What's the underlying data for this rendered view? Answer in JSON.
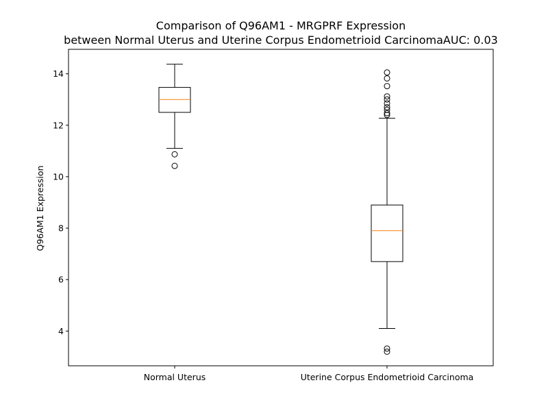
{
  "chart_data": {
    "type": "box",
    "title_line1": "Comparison of Q96AM1 - MRGPRF Expression",
    "title_line2": "between Normal Uterus and Uterine Corpus Endometrioid CarcinomaAUC: 0.03",
    "xlabel": "",
    "ylabel": "Q96AM1 Expression",
    "ylim": [
      2.65,
      14.95
    ],
    "yticks": [
      4,
      6,
      8,
      10,
      12,
      14
    ],
    "grid": false,
    "categories": [
      "Normal Uterus",
      "Uterine Corpus Endometrioid Carcinoma"
    ],
    "boxes": [
      {
        "category": "Normal Uterus",
        "whisker_low": 11.1,
        "q1": 12.5,
        "median": 13.0,
        "q3": 13.47,
        "whisker_high": 14.37,
        "outliers": [
          10.87,
          10.42
        ]
      },
      {
        "category": "Uterine Corpus Endometrioid Carcinoma",
        "whisker_low": 4.1,
        "q1": 6.7,
        "median": 7.9,
        "q3": 8.9,
        "whisker_high": 12.27,
        "outliers": [
          3.32,
          3.2,
          12.4,
          12.47,
          12.6,
          12.7,
          12.85,
          13.0,
          13.12,
          13.52,
          13.82,
          14.05
        ]
      }
    ],
    "colors": {
      "box": "#000000",
      "median": "#ff7f0e",
      "outlier": "#000000"
    }
  }
}
